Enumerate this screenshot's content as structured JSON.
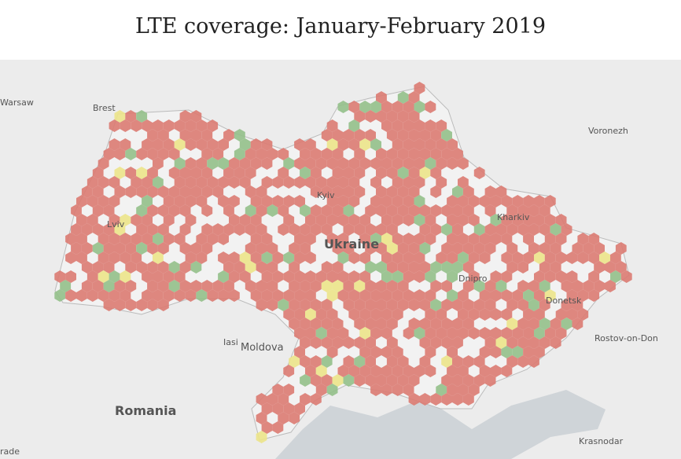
{
  "header": {
    "title": "LTE coverage: January-February 2019"
  },
  "map": {
    "labels": [
      "Warsaw",
      "Brest",
      "Voronezh",
      "Kyiv",
      "Kharkiv",
      "Lviv",
      "Ukraine",
      "Dnipro",
      "Donetsk",
      "Iasi",
      "Moldova",
      "Rostov-on-Don",
      "Romania",
      "Krasnodar",
      "rade"
    ]
  }
}
